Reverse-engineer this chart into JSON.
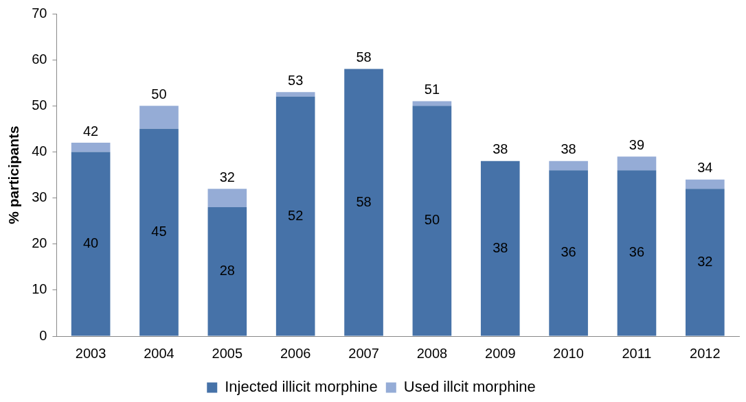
{
  "chart_data": {
    "type": "bar",
    "stacked": true,
    "ylabel": "% participants",
    "categories": [
      "2003",
      "2004",
      "2005",
      "2006",
      "2007",
      "2008",
      "2009",
      "2010",
      "2011",
      "2012"
    ],
    "series": [
      {
        "name": "Injected illicit morphine",
        "color": "#4672a8",
        "values": [
          40,
          45,
          28,
          52,
          58,
          50,
          38,
          36,
          36,
          32
        ],
        "value_labels": [
          "40",
          "45",
          "28",
          "52",
          "58",
          "50",
          "38",
          "36",
          "36",
          "32"
        ]
      },
      {
        "name": "Used illcit morphine",
        "color": "#95acd6",
        "values": [
          2,
          5,
          4,
          1,
          0,
          1,
          0,
          2,
          3,
          2
        ]
      }
    ],
    "totals": [
      "42",
      "50",
      "32",
      "53",
      "58",
      "51",
      "38",
      "38",
      "39",
      "34"
    ],
    "ylim": [
      0,
      70
    ],
    "yticks": [
      0,
      10,
      20,
      30,
      40,
      50,
      60,
      70
    ],
    "grid": false,
    "legend": "bottom"
  }
}
